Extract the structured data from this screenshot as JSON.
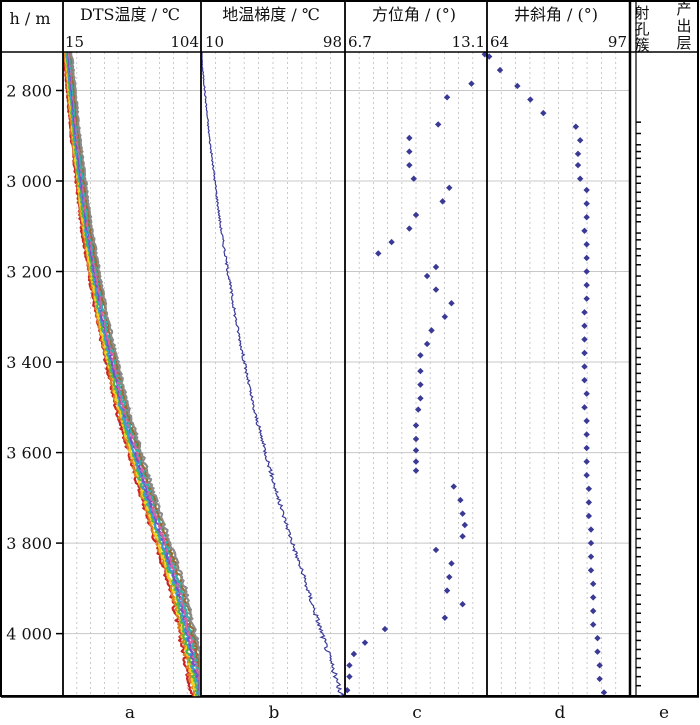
{
  "chart_data": {
    "type": "well-log",
    "y_axis": {
      "label": "h / m",
      "range": [
        2715,
        4140
      ],
      "ticks": [
        2800,
        3000,
        3200,
        3400,
        3600,
        3800,
        4000
      ],
      "tick_labels": [
        "2 800",
        "3 000",
        "3 200",
        "3 400",
        "3 600",
        "3 800",
        "4 000"
      ],
      "inverted": true
    },
    "tracks": [
      {
        "id": "a",
        "title": "DTS温度 / ℃",
        "xmin_label": "15",
        "xmax_label": "104",
        "xlim": [
          15,
          104
        ],
        "footer": "a",
        "style": "bundle",
        "profile_depth": [
          2715,
          2900,
          3100,
          3300,
          3500,
          3700,
          3900,
          4140
        ],
        "profile_temp": [
          18,
          23,
          30,
          40,
          53,
          70,
          89,
          104
        ],
        "series_colors": [
          "#cc2222",
          "#e07f1f",
          "#f2d21c",
          "#4db84d",
          "#3a9ad9",
          "#7b4fc8",
          "#e05fa0",
          "#2fb3a8",
          "#9a6b2f",
          "#8a8a8a"
        ]
      },
      {
        "id": "b",
        "title": "地温梯度 / ℃",
        "xmin_label": "10",
        "xmax_label": "98",
        "xlim": [
          10,
          98
        ],
        "footer": "b",
        "style": "line",
        "color": "#3b3b9a",
        "profile_depth": [
          2715,
          2900,
          3100,
          3300,
          3500,
          3700,
          3900,
          4000,
          4140
        ],
        "profile_value": [
          10,
          15,
          22,
          31,
          42,
          57,
          75,
          84,
          96
        ]
      },
      {
        "id": "c",
        "title": "方位角 / (°)",
        "xmin_label": "6.7",
        "xmax_label": "13.1",
        "xlim": [
          6.7,
          13.1
        ],
        "footer": "c",
        "style": "points",
        "color": "#3a3a96",
        "points": [
          [
            2720,
            13.0
          ],
          [
            2785,
            12.4
          ],
          [
            2815,
            11.3
          ],
          [
            2875,
            10.9
          ],
          [
            2905,
            9.6
          ],
          [
            2935,
            9.6
          ],
          [
            2965,
            9.6
          ],
          [
            2995,
            9.8
          ],
          [
            3015,
            11.4
          ],
          [
            3045,
            11.1
          ],
          [
            3075,
            9.9
          ],
          [
            3105,
            9.6
          ],
          [
            3135,
            8.8
          ],
          [
            3160,
            8.2
          ],
          [
            3190,
            10.8
          ],
          [
            3210,
            10.4
          ],
          [
            3240,
            10.8
          ],
          [
            3270,
            11.5
          ],
          [
            3300,
            11.2
          ],
          [
            3330,
            10.6
          ],
          [
            3360,
            10.4
          ],
          [
            3385,
            10.1
          ],
          [
            3420,
            10.1
          ],
          [
            3450,
            10.1
          ],
          [
            3480,
            10.1
          ],
          [
            3505,
            10.0
          ],
          [
            3540,
            9.9
          ],
          [
            3570,
            9.9
          ],
          [
            3595,
            9.9
          ],
          [
            3620,
            9.9
          ],
          [
            3640,
            9.9
          ],
          [
            3675,
            11.6
          ],
          [
            3705,
            11.9
          ],
          [
            3735,
            12.0
          ],
          [
            3760,
            12.1
          ],
          [
            3785,
            12.0
          ],
          [
            3815,
            10.8
          ],
          [
            3845,
            11.5
          ],
          [
            3875,
            11.4
          ],
          [
            3905,
            11.3
          ],
          [
            3935,
            12.0
          ],
          [
            3965,
            11.2
          ],
          [
            3990,
            8.5
          ],
          [
            4020,
            7.6
          ],
          [
            4045,
            7.1
          ],
          [
            4070,
            6.9
          ],
          [
            4095,
            6.9
          ],
          [
            4125,
            6.8
          ]
        ]
      },
      {
        "id": "d",
        "title": "井斜角 / (°)",
        "xmin_label": "64",
        "xmax_label": "97",
        "xlim": [
          64,
          97
        ],
        "footer": "d",
        "style": "points",
        "color": "#3a3a96",
        "points": [
          [
            2725,
            64.5
          ],
          [
            2755,
            67.0
          ],
          [
            2790,
            71.0
          ],
          [
            2820,
            74.0
          ],
          [
            2850,
            77.0
          ],
          [
            2880,
            84.5
          ],
          [
            2910,
            85.5
          ],
          [
            2940,
            85.0
          ],
          [
            2965,
            85.0
          ],
          [
            2995,
            85.5
          ],
          [
            3020,
            87.0
          ],
          [
            3050,
            87.0
          ],
          [
            3080,
            87.0
          ],
          [
            3110,
            86.5
          ],
          [
            3140,
            87.0
          ],
          [
            3170,
            87.0
          ],
          [
            3200,
            87.0
          ],
          [
            3230,
            87.0
          ],
          [
            3260,
            87.0
          ],
          [
            3290,
            86.5
          ],
          [
            3320,
            86.5
          ],
          [
            3350,
            86.5
          ],
          [
            3380,
            86.5
          ],
          [
            3410,
            86.5
          ],
          [
            3440,
            86.5
          ],
          [
            3470,
            87.0
          ],
          [
            3500,
            86.5
          ],
          [
            3530,
            87.0
          ],
          [
            3560,
            87.0
          ],
          [
            3590,
            87.0
          ],
          [
            3620,
            87.0
          ],
          [
            3650,
            87.0
          ],
          [
            3680,
            87.5
          ],
          [
            3710,
            87.5
          ],
          [
            3740,
            87.5
          ],
          [
            3770,
            88.0
          ],
          [
            3800,
            88.0
          ],
          [
            3830,
            88.0
          ],
          [
            3860,
            88.0
          ],
          [
            3890,
            88.5
          ],
          [
            3920,
            88.5
          ],
          [
            3950,
            88.5
          ],
          [
            3980,
            88.5
          ],
          [
            4010,
            89.5
          ],
          [
            4040,
            89.5
          ],
          [
            4070,
            90.0
          ],
          [
            4100,
            90.0
          ],
          [
            4130,
            91.0
          ]
        ]
      },
      {
        "id": "e",
        "title_chars": [
          "射",
          "孔",
          "簇",
          "产",
          "出",
          "层"
        ],
        "footer": "e",
        "style": "perforations",
        "marks": [
          2870,
          2895,
          2920,
          2935,
          2950,
          2970,
          2990,
          3005,
          3025,
          3045,
          3060,
          3075,
          3090,
          3115,
          3130,
          3150,
          3165,
          3185,
          3210,
          3230,
          3255,
          3275,
          3295,
          3310,
          3325,
          3345,
          3370,
          3390,
          3405,
          3425,
          3445,
          3465,
          3485,
          3505,
          3520,
          3540,
          3555,
          3575,
          3600,
          3620,
          3640,
          3660,
          3680,
          3705,
          3725,
          3745,
          3770,
          3790,
          3810,
          3830,
          3850,
          3870,
          3890,
          3915,
          3935,
          3955,
          3975,
          3995,
          4015,
          4035,
          4055,
          4075,
          4095,
          4115
        ]
      }
    ]
  }
}
